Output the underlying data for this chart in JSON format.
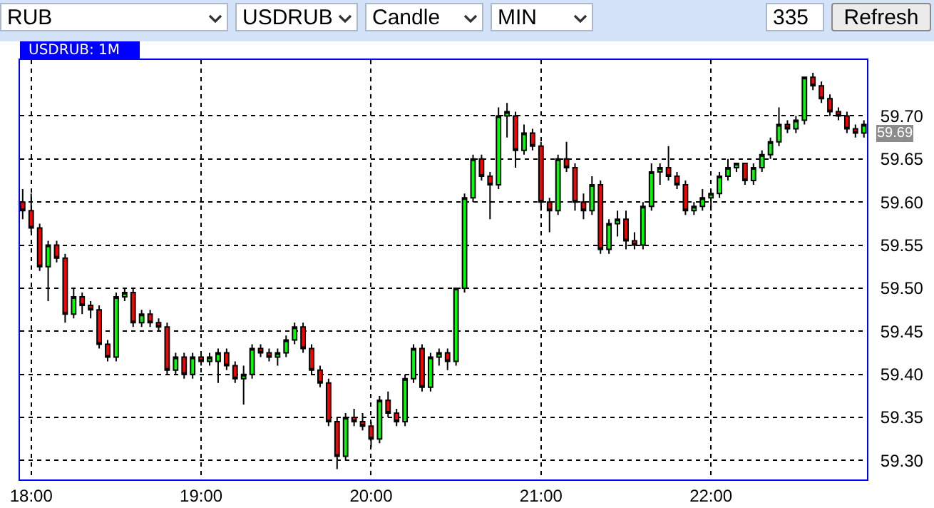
{
  "chart_data": {
    "type": "candlestick",
    "title": "USDRUB: 1M",
    "annotations": [
      "RUB",
      "USDRUB",
      "Candle",
      "MIN",
      "335",
      "Refresh",
      {
        "text": "59.69",
        "x": 22.9,
        "y": 59.69
      }
    ],
    "x": [
      17.95,
      18.0,
      18.05,
      18.1,
      18.15,
      18.2,
      18.25,
      18.3,
      18.35,
      18.4,
      18.45,
      18.5,
      18.55,
      18.6,
      18.65,
      18.7,
      18.75,
      18.8,
      18.85,
      18.9,
      18.95,
      19.0,
      19.05,
      19.1,
      19.15,
      19.2,
      19.25,
      19.3,
      19.35,
      19.4,
      19.45,
      19.5,
      19.55,
      19.6,
      19.65,
      19.7,
      19.75,
      19.8,
      19.85,
      19.9,
      19.95,
      20.0,
      20.05,
      20.1,
      20.15,
      20.2,
      20.25,
      20.3,
      20.35,
      20.4,
      20.45,
      20.5,
      20.55,
      20.6,
      20.65,
      20.7,
      20.75,
      20.8,
      20.85,
      20.9,
      20.95,
      21.0,
      21.05,
      21.1,
      21.15,
      21.2,
      21.25,
      21.3,
      21.35,
      21.4,
      21.45,
      21.5,
      21.55,
      21.6,
      21.65,
      21.7,
      21.75,
      21.8,
      21.85,
      21.9,
      21.95,
      22.0,
      22.05,
      22.1,
      22.15,
      22.2,
      22.25,
      22.3,
      22.35,
      22.4,
      22.45,
      22.5,
      22.55,
      22.6,
      22.65,
      22.7,
      22.75,
      22.8,
      22.85,
      22.9
    ],
    "ohlc": [
      [
        59.6,
        59.615,
        59.58,
        59.59
      ],
      [
        59.59,
        59.61,
        59.565,
        59.57
      ],
      [
        59.57,
        59.575,
        59.52,
        59.525
      ],
      [
        59.525,
        59.555,
        59.485,
        59.55
      ],
      [
        59.55,
        59.555,
        59.53,
        59.535
      ],
      [
        59.535,
        59.54,
        59.46,
        59.47
      ],
      [
        59.47,
        59.5,
        59.465,
        59.49
      ],
      [
        59.49,
        59.495,
        59.47,
        59.48
      ],
      [
        59.48,
        59.485,
        59.465,
        59.475
      ],
      [
        59.475,
        59.48,
        59.43,
        59.435
      ],
      [
        59.435,
        59.44,
        59.415,
        59.42
      ],
      [
        59.42,
        59.495,
        59.415,
        59.49
      ],
      [
        59.49,
        59.5,
        59.485,
        59.495
      ],
      [
        59.495,
        59.5,
        59.455,
        59.46
      ],
      [
        59.46,
        59.475,
        59.455,
        59.47
      ],
      [
        59.47,
        59.475,
        59.455,
        59.46
      ],
      [
        59.46,
        59.465,
        59.45,
        59.455
      ],
      [
        59.455,
        59.46,
        59.4,
        59.405
      ],
      [
        59.405,
        59.425,
        59.4,
        59.42
      ],
      [
        59.42,
        59.425,
        59.395,
        59.4
      ],
      [
        59.4,
        59.425,
        59.395,
        59.42
      ],
      [
        59.42,
        59.425,
        59.41,
        59.415
      ],
      [
        59.415,
        59.425,
        59.41,
        59.42
      ],
      [
        59.415,
        59.43,
        59.39,
        59.425
      ],
      [
        59.425,
        59.43,
        59.405,
        59.41
      ],
      [
        59.41,
        59.415,
        59.39,
        59.395
      ],
      [
        59.395,
        59.41,
        59.365,
        59.4
      ],
      [
        59.4,
        59.435,
        59.395,
        59.43
      ],
      [
        59.43,
        59.435,
        59.42,
        59.425
      ],
      [
        59.425,
        59.43,
        59.415,
        59.42
      ],
      [
        59.42,
        59.43,
        59.41,
        59.425
      ],
      [
        59.425,
        59.445,
        59.42,
        59.44
      ],
      [
        59.44,
        59.46,
        59.435,
        59.455
      ],
      [
        59.455,
        59.46,
        59.425,
        59.43
      ],
      [
        59.43,
        59.435,
        59.4,
        59.405
      ],
      [
        59.405,
        59.41,
        59.385,
        59.39
      ],
      [
        59.39,
        59.395,
        59.34,
        59.345
      ],
      [
        59.345,
        59.35,
        59.29,
        59.305
      ],
      [
        59.305,
        59.355,
        59.3,
        59.35
      ],
      [
        59.35,
        59.36,
        59.34,
        59.345
      ],
      [
        59.345,
        59.355,
        59.335,
        59.34
      ],
      [
        59.34,
        59.345,
        59.315,
        59.325
      ],
      [
        59.325,
        59.375,
        59.32,
        59.37
      ],
      [
        59.37,
        59.38,
        59.35,
        59.355
      ],
      [
        59.355,
        59.36,
        59.34,
        59.345
      ],
      [
        59.345,
        59.4,
        59.34,
        59.395
      ],
      [
        59.395,
        59.435,
        59.39,
        59.43
      ],
      [
        59.43,
        59.435,
        59.38,
        59.385
      ],
      [
        59.385,
        59.425,
        59.38,
        59.42
      ],
      [
        59.42,
        59.43,
        59.41,
        59.425
      ],
      [
        59.425,
        59.43,
        59.405,
        59.415
      ],
      [
        59.415,
        59.5,
        59.41,
        59.5
      ],
      [
        59.5,
        59.61,
        59.495,
        59.605
      ],
      [
        59.605,
        59.655,
        59.6,
        59.65
      ],
      [
        59.65,
        59.655,
        59.625,
        59.63
      ],
      [
        59.63,
        59.635,
        59.58,
        59.62
      ],
      [
        59.62,
        59.71,
        59.615,
        59.7
      ],
      [
        59.7,
        59.715,
        59.675,
        59.705
      ],
      [
        59.7,
        59.705,
        59.64,
        59.66
      ],
      [
        59.66,
        59.69,
        59.655,
        59.68
      ],
      [
        59.68,
        59.685,
        59.66,
        59.665
      ],
      [
        59.665,
        59.67,
        59.59,
        59.6
      ],
      [
        59.6,
        59.605,
        59.565,
        59.59
      ],
      [
        59.59,
        59.655,
        59.585,
        59.65
      ],
      [
        59.65,
        59.67,
        59.635,
        59.64
      ],
      [
        59.64,
        59.645,
        59.59,
        59.6
      ],
      [
        59.6,
        59.61,
        59.58,
        59.59
      ],
      [
        59.59,
        59.63,
        59.585,
        59.62
      ],
      [
        59.62,
        59.625,
        59.54,
        59.545
      ],
      [
        59.545,
        59.58,
        59.54,
        59.575
      ],
      [
        59.575,
        59.59,
        59.56,
        59.58
      ],
      [
        59.58,
        59.59,
        59.545,
        59.555
      ],
      [
        59.555,
        59.565,
        59.545,
        59.55
      ],
      [
        59.55,
        59.6,
        59.545,
        59.595
      ],
      [
        59.595,
        59.645,
        59.59,
        59.635
      ],
      [
        59.635,
        59.645,
        59.62,
        59.64
      ],
      [
        59.64,
        59.665,
        59.625,
        59.63
      ],
      [
        59.63,
        59.635,
        59.615,
        59.62
      ],
      [
        59.62,
        59.625,
        59.585,
        59.59
      ],
      [
        59.59,
        59.6,
        59.585,
        59.595
      ],
      [
        59.595,
        59.615,
        59.59,
        59.605
      ],
      [
        59.605,
        59.615,
        59.59,
        59.61
      ],
      [
        59.61,
        59.635,
        59.605,
        59.63
      ],
      [
        59.63,
        59.65,
        59.625,
        59.64
      ],
      [
        59.64,
        59.645,
        59.635,
        59.645
      ],
      [
        59.645,
        59.645,
        59.62,
        59.625
      ],
      [
        59.625,
        59.645,
        59.62,
        59.64
      ],
      [
        59.64,
        59.66,
        59.635,
        59.655
      ],
      [
        59.655,
        59.675,
        59.65,
        59.67
      ],
      [
        59.67,
        59.71,
        59.665,
        59.69
      ],
      [
        59.69,
        59.695,
        59.68,
        59.685
      ],
      [
        59.685,
        59.7,
        59.68,
        59.695
      ],
      [
        59.695,
        59.745,
        59.69,
        59.745
      ],
      [
        59.745,
        59.75,
        59.73,
        59.735
      ],
      [
        59.735,
        59.74,
        59.715,
        59.72
      ],
      [
        59.72,
        59.725,
        59.7,
        59.705
      ],
      [
        59.705,
        59.71,
        59.695,
        59.7
      ],
      [
        59.7,
        59.705,
        59.68,
        59.685
      ],
      [
        59.685,
        59.69,
        59.675,
        59.68
      ],
      [
        59.68,
        59.695,
        59.675,
        59.69
      ]
    ],
    "colors": [
      "#ff0000",
      "#ff0000",
      "#ff0000",
      "#00ff00",
      "#ff0000",
      "#ff0000",
      "#00ff00",
      "#ff0000",
      "#ff0000",
      "#ff0000",
      "#ff0000",
      "#00ff00",
      "#00ff00",
      "#ff0000",
      "#00ff00",
      "#ff0000",
      "#ff0000",
      "#ff0000",
      "#00ff00",
      "#ff0000",
      "#00ff00",
      "#ff0000",
      "#00ff00",
      "#00ff00",
      "#ff0000",
      "#ff0000",
      "#00ff00",
      "#00ff00",
      "#ff0000",
      "#ff0000",
      "#00ff00",
      "#00ff00",
      "#00ff00",
      "#ff0000",
      "#ff0000",
      "#ff0000",
      "#ff0000",
      "#ff0000",
      "#00ff00",
      "#ff0000",
      "#ff0000",
      "#ff0000",
      "#00ff00",
      "#ff0000",
      "#ff0000",
      "#00ff00",
      "#00ff00",
      "#ff0000",
      "#00ff00",
      "#00ff00",
      "#ff0000",
      "#00ff00",
      "#00ff00",
      "#00ff00",
      "#ff0000",
      "#ff0000",
      "#00ff00",
      "#00ff00",
      "#ff0000",
      "#00ff00",
      "#ff0000",
      "#ff0000",
      "#ff0000",
      "#00ff00",
      "#ff0000",
      "#ff0000",
      "#ff0000",
      "#00ff00",
      "#ff0000",
      "#00ff00",
      "#00ff00",
      "#ff0000",
      "#ff0000",
      "#00ff00",
      "#00ff00",
      "#00ff00",
      "#ff0000",
      "#ff0000",
      "#ff0000",
      "#00ff00",
      "#00ff00",
      "#00ff00",
      "#00ff00",
      "#00ff00",
      "#00ff00",
      "#ff0000",
      "#00ff00",
      "#00ff00",
      "#00ff00",
      "#00ff00",
      "#ff0000",
      "#00ff00",
      "#00ff00",
      "#ff0000",
      "#ff0000",
      "#ff0000",
      "#ff0000",
      "#ff0000",
      "#ff0000",
      "#00ff00"
    ],
    "xlim": [
      17.934,
      22.918
    ],
    "xticks": [
      {
        "value": 18,
        "label": "18:00"
      },
      {
        "value": 19,
        "label": "19:00"
      },
      {
        "value": 20,
        "label": "20:00"
      },
      {
        "value": 21,
        "label": "21:00"
      },
      {
        "value": 22,
        "label": "22:00"
      }
    ],
    "ylim": [
      59.278,
      59.765
    ],
    "yticks": [
      {
        "value": 59.3,
        "label": "59.30"
      },
      {
        "value": 59.35,
        "label": "59.35"
      },
      {
        "value": 59.4,
        "label": "59.40"
      },
      {
        "value": 59.45,
        "label": "59.45"
      },
      {
        "value": 59.5,
        "label": "59.50"
      },
      {
        "value": 59.55,
        "label": "59.55"
      },
      {
        "value": 59.6,
        "label": "59.60"
      },
      {
        "value": 59.65,
        "label": "59.65"
      },
      {
        "value": 59.7,
        "label": "59.70"
      }
    ],
    "grid": true
  }
}
